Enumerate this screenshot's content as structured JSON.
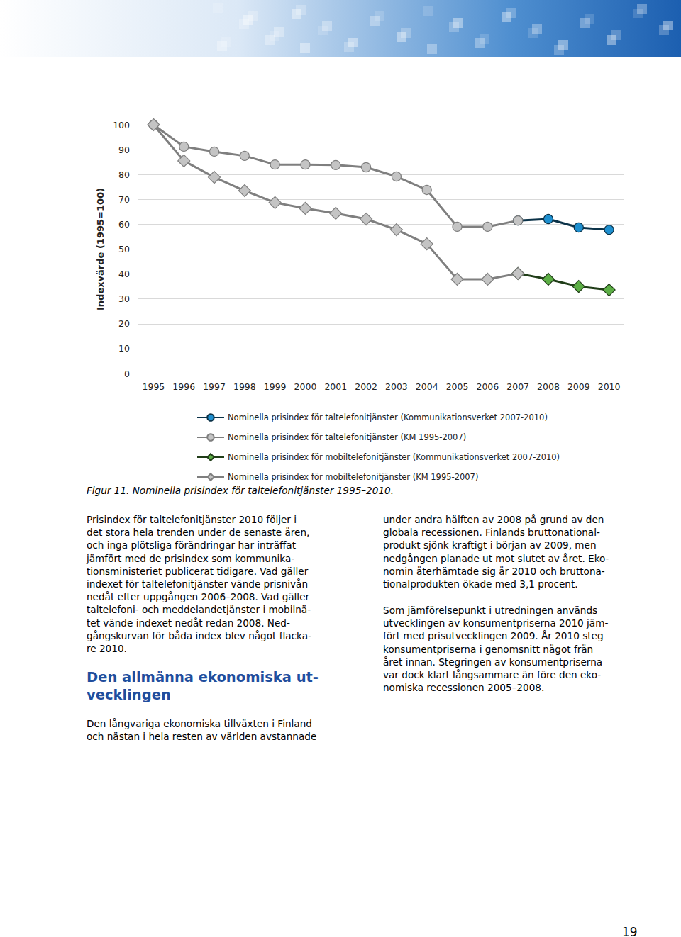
{
  "chart_data": {
    "type": "line",
    "y_label": "Indexvärde (1995=100)",
    "categories": [
      "1995",
      "1996",
      "1997",
      "1998",
      "1999",
      "2000",
      "2001",
      "2002",
      "2003",
      "2004",
      "2005",
      "2006",
      "2007",
      "2008",
      "2009",
      "2010"
    ],
    "ylim": [
      0,
      100
    ],
    "yticks": [
      0,
      10,
      20,
      30,
      40,
      50,
      60,
      70,
      80,
      90,
      100
    ],
    "grid": true,
    "legend": "bottom",
    "series": [
      {
        "name": "Nominella prisindex för taltelefonitjänster (Kommunikationsverket 2007-2010)",
        "color": "#1e8fcf",
        "marker": "circle",
        "values": [
          null,
          null,
          null,
          null,
          null,
          null,
          null,
          null,
          null,
          null,
          null,
          null,
          61.5,
          62.1,
          58.7,
          57.8
        ]
      },
      {
        "name": "Nominella prisindex för taltelefonitjänster (KM 1995-2007)",
        "color": "#c4c4c4",
        "marker": "circle",
        "values": [
          100,
          91.2,
          89.2,
          87.5,
          84,
          84,
          83.8,
          82.9,
          79.2,
          73.8,
          59,
          59,
          61.5,
          null,
          null,
          null
        ]
      },
      {
        "name": "Nominella prisindex för mobiltelefonitjänster (Kommunikationsverket 2007-2010)",
        "color": "#5cae45",
        "marker": "diamond",
        "values": [
          null,
          null,
          null,
          null,
          null,
          null,
          null,
          null,
          null,
          null,
          null,
          null,
          40.2,
          37.9,
          35,
          33.6
        ]
      },
      {
        "name": "Nominella prisindex för mobiltelefonitjänster (KM 1995-2007)",
        "color": "#c4c4c4",
        "marker": "diamond",
        "values": [
          100,
          85.5,
          78.9,
          73.5,
          68.7,
          66.4,
          64.4,
          62.1,
          57.8,
          52.1,
          37.9,
          37.9,
          40.2,
          null,
          null,
          null
        ]
      }
    ]
  },
  "caption": "Figur 11. Nominella prisindex för taltelefonitjänster 1995–2010.",
  "left_column": [
    {
      "kind": "paragraph",
      "lines": [
        "Prisindex för taltelefonitjänster 2010 följer i",
        "det stora hela trenden under de senaste åren,",
        "och inga plötsliga förändringar har inträffat",
        "jämfört med de prisindex som kommunika-",
        "tionsministeriet publicerat tidigare. Vad gäller",
        "indexet för taltelefonitjänster vände prisnivån",
        "nedåt efter uppgången 2006–2008. Vad gäller",
        "taltelefoni- och meddelandetjänster i mobilnä-",
        "tet vände indexet nedåt redan 2008. Ned-",
        "gångskurvan för båda index blev något flacka-",
        "re 2010."
      ]
    },
    {
      "kind": "heading",
      "lines": [
        "Den allmänna ekonomiska ut-",
        "vecklingen"
      ]
    },
    {
      "kind": "paragraph",
      "lines": [
        "Den långvariga ekonomiska tillväxten i Finland",
        "och nästan i hela resten av världen avstannade"
      ]
    }
  ],
  "right_column": [
    {
      "kind": "paragraph",
      "lines": [
        "under andra hälften av 2008 på grund av den",
        "globala recessionen. Finlands bruttonational-",
        "produkt sjönk kraftigt i början av 2009, men",
        "nedgången planade ut mot slutet av året. Eko-",
        "nomin återhämtade sig år 2010 och bruttona-",
        "tionalprodukten ökade med 3,1 procent."
      ]
    },
    {
      "kind": "paragraph",
      "lines": [
        "Som jämförelsepunkt i utredningen används",
        "utvecklingen av konsumentpriserna 2010 jäm-",
        "fört med prisutvecklingen 2009. År 2010 steg",
        "konsumentpriserna i genomsnitt något från",
        "året innan. Stegringen av konsumentpriserna",
        "var dock klart långsammare än före den eko-",
        "nomiska recessionen 2005–2008."
      ]
    }
  ],
  "page_number": "19"
}
